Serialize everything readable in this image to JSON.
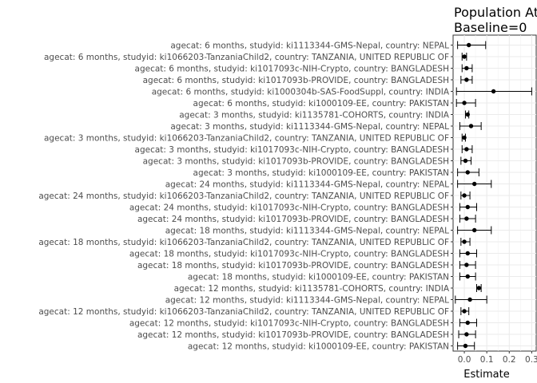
{
  "chart_data": {
    "type": "forest",
    "title": "Population At",
    "subtitle": "Baseline=0",
    "xlabel": "Estimate",
    "xlim": [
      -0.05,
      0.32
    ],
    "xticks": [
      0.0,
      0.1,
      0.2,
      0.3
    ],
    "xtick_labels": [
      "0.0",
      "0.1",
      "0.2",
      "0.3"
    ],
    "grid": true,
    "rows": [
      {
        "label": "agecat: 6 months, studyid: ki1113344-GMS-Nepal, country: NEPAL",
        "estimate": 0.02,
        "lower": -0.03,
        "upper": 0.095
      },
      {
        "label": "agecat: 6 months, studyid: ki1066203-TanzaniaChild2, country: TANZANIA, UNITED REPUBLIC OF",
        "estimate": 0.0,
        "lower": -0.01,
        "upper": 0.01
      },
      {
        "label": "agecat: 6 months, studyid: ki1017093c-NIH-Crypto, country: BANGLADESH",
        "estimate": 0.01,
        "lower": -0.01,
        "upper": 0.035
      },
      {
        "label": "agecat: 6 months, studyid: ki1017093b-PROVIDE, country: BANGLADESH",
        "estimate": 0.01,
        "lower": -0.015,
        "upper": 0.035
      },
      {
        "label": "agecat: 6 months, studyid: ki1000304b-SAS-FoodSuppl, country: INDIA",
        "estimate": 0.13,
        "lower": -0.035,
        "upper": 0.3
      },
      {
        "label": "agecat: 6 months, studyid: ki1000109-EE, country: PAKISTAN",
        "estimate": 0.0,
        "lower": -0.035,
        "upper": 0.05
      },
      {
        "label": "agecat: 3 months, studyid: ki1135781-COHORTS, country: INDIA",
        "estimate": 0.015,
        "lower": 0.005,
        "upper": 0.02
      },
      {
        "label": "agecat: 3 months, studyid: ki1113344-GMS-Nepal, country: NEPAL",
        "estimate": 0.03,
        "lower": -0.02,
        "upper": 0.075
      },
      {
        "label": "agecat: 3 months, studyid: ki1066203-TanzaniaChild2, country: TANZANIA, UNITED REPUBLIC OF",
        "estimate": 0.0,
        "lower": -0.01,
        "upper": 0.005
      },
      {
        "label": "agecat: 3 months, studyid: ki1017093c-NIH-Crypto, country: BANGLADESH",
        "estimate": 0.01,
        "lower": -0.01,
        "upper": 0.035
      },
      {
        "label": "agecat: 3 months, studyid: ki1017093b-PROVIDE, country: BANGLADESH",
        "estimate": 0.005,
        "lower": -0.015,
        "upper": 0.03
      },
      {
        "label": "agecat: 3 months, studyid: ki1000109-EE, country: PAKISTAN",
        "estimate": 0.015,
        "lower": -0.03,
        "upper": 0.065
      },
      {
        "label": "agecat: 24 months, studyid: ki1113344-GMS-Nepal, country: NEPAL",
        "estimate": 0.045,
        "lower": -0.03,
        "upper": 0.12
      },
      {
        "label": "agecat: 24 months, studyid: ki1066203-TanzaniaChild2, country: TANZANIA, UNITED REPUBLIC OF",
        "estimate": 0.0,
        "lower": -0.015,
        "upper": 0.025
      },
      {
        "label": "agecat: 24 months, studyid: ki1017093c-NIH-Crypto, country: BANGLADESH",
        "estimate": 0.015,
        "lower": -0.02,
        "upper": 0.055
      },
      {
        "label": "agecat: 24 months, studyid: ki1017093b-PROVIDE, country: BANGLADESH",
        "estimate": 0.01,
        "lower": -0.02,
        "upper": 0.05
      },
      {
        "label": "agecat: 18 months, studyid: ki1113344-GMS-Nepal, country: NEPAL",
        "estimate": 0.045,
        "lower": -0.03,
        "upper": 0.12
      },
      {
        "label": "agecat: 18 months, studyid: ki1066203-TanzaniaChild2, country: TANZANIA, UNITED REPUBLIC OF",
        "estimate": 0.0,
        "lower": -0.015,
        "upper": 0.025
      },
      {
        "label": "agecat: 18 months, studyid: ki1017093c-NIH-Crypto, country: BANGLADESH",
        "estimate": 0.015,
        "lower": -0.02,
        "upper": 0.055
      },
      {
        "label": "agecat: 18 months, studyid: ki1017093b-PROVIDE, country: BANGLADESH",
        "estimate": 0.01,
        "lower": -0.02,
        "upper": 0.05
      },
      {
        "label": "agecat: 18 months, studyid: ki1000109-EE, country: PAKISTAN",
        "estimate": 0.015,
        "lower": -0.02,
        "upper": 0.05
      },
      {
        "label": "agecat: 12 months, studyid: ki1135781-COHORTS, country: INDIA",
        "estimate": 0.065,
        "lower": 0.055,
        "upper": 0.075
      },
      {
        "label": "agecat: 12 months, studyid: ki1113344-GMS-Nepal, country: NEPAL",
        "estimate": 0.025,
        "lower": -0.04,
        "upper": 0.1
      },
      {
        "label": "agecat: 12 months, studyid: ki1066203-TanzaniaChild2, country: TANZANIA, UNITED REPUBLIC OF",
        "estimate": 0.0,
        "lower": -0.015,
        "upper": 0.02
      },
      {
        "label": "agecat: 12 months, studyid: ki1017093c-NIH-Crypto, country: BANGLADESH",
        "estimate": 0.015,
        "lower": -0.02,
        "upper": 0.055
      },
      {
        "label": "agecat: 12 months, studyid: ki1017093b-PROVIDE, country: BANGLADESH",
        "estimate": 0.01,
        "lower": -0.025,
        "upper": 0.05
      },
      {
        "label": "agecat: 12 months, studyid: ki1000109-EE, country: PAKISTAN",
        "estimate": 0.005,
        "lower": -0.03,
        "upper": 0.045
      }
    ]
  }
}
